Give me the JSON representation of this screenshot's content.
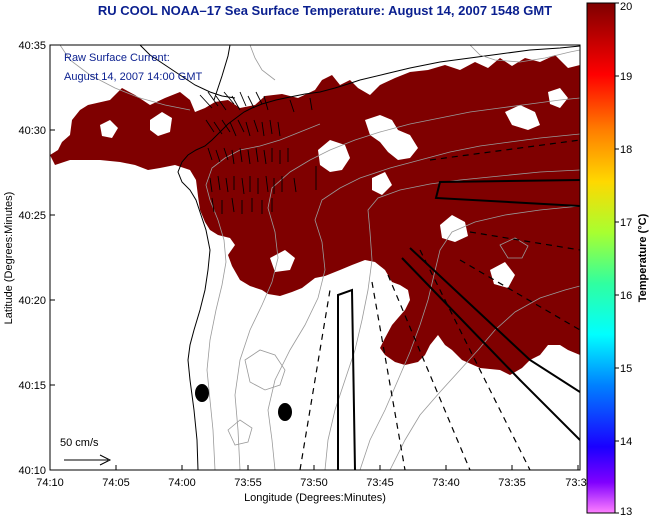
{
  "title": "RU COOL  NOAA–17  Sea Surface Temperature:  August 14, 2007 1548 GMT",
  "annotation": {
    "line1": "Raw Surface Current:",
    "line2": "August 14, 2007 14:00 GMT"
  },
  "axes": {
    "xlabel": "Longitude (Degrees:Minutes)",
    "ylabel": "Latitude (Degrees:Minutes)",
    "x_ticks": [
      "74:10",
      "74:05",
      "74:00",
      "73:55",
      "73:50",
      "73:45",
      "73:40",
      "73:35",
      "73:3"
    ],
    "y_ticks": [
      "40:35",
      "40:30",
      "40:25",
      "40:20",
      "40:15",
      "40:10"
    ]
  },
  "scale_arrow": {
    "label": "50 cm/s"
  },
  "colorbar": {
    "label": "Temperature (°C)",
    "min": 13,
    "max": 20,
    "ticks": [
      "20",
      "19",
      "18",
      "17",
      "16",
      "15",
      "14",
      "13"
    ]
  },
  "colors": {
    "sst_fill": "#7f0000",
    "title_text": "#0a1f8f",
    "contour": "#9a9a9a"
  }
}
